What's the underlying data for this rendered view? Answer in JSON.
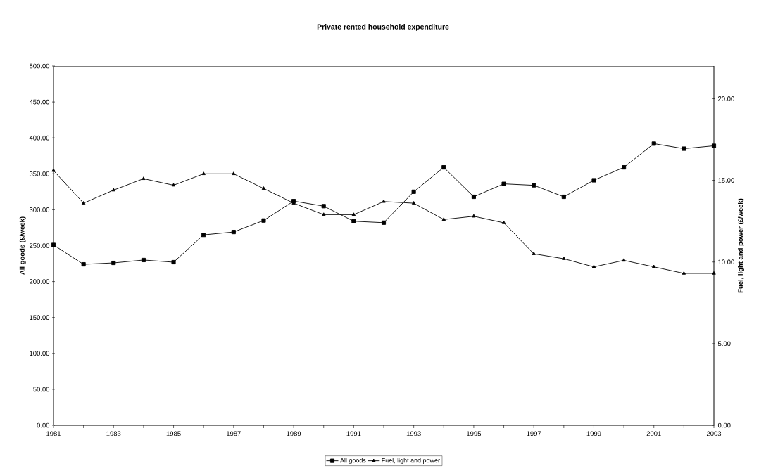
{
  "chart_data": {
    "type": "line",
    "title": "Private rented household expenditure",
    "ylabel": "All goods (£/week)",
    "y2label": "Fuel, light and power (£/week)",
    "x": [
      1981,
      1982,
      1983,
      1984,
      1985,
      1986,
      1987,
      1988,
      1989,
      1990,
      1991,
      1992,
      1993,
      1994,
      1995,
      1996,
      1997,
      1998,
      1999,
      2000,
      2001,
      2002,
      2003
    ],
    "series": [
      {
        "name": "All goods",
        "color": "#000000",
        "marker": "square",
        "values": [
          251,
          224,
          226,
          230,
          227,
          265,
          269,
          285,
          312,
          305,
          284,
          282,
          325,
          359,
          318,
          336,
          334,
          318,
          341,
          359,
          392,
          385,
          389
        ]
      },
      {
        "name": "Fuel, light and power",
        "color": "#000000",
        "marker": "triangle",
        "axis": "y2",
        "values": [
          15.6,
          13.6,
          14.4,
          15.1,
          14.7,
          15.4,
          15.4,
          14.5,
          13.6,
          12.9,
          12.9,
          13.7,
          13.6,
          12.6,
          12.8,
          12.4,
          10.5,
          10.2,
          9.7,
          10.1,
          9.7,
          9.3,
          9.3
        ]
      }
    ],
    "xlim": [
      1981,
      2003
    ],
    "xticks": [
      1981,
      {
        "value": 1982,
        "label": null
      },
      1983,
      {
        "value": 1984,
        "label": null
      },
      1985,
      {
        "value": 1986,
        "label": null
      },
      1987,
      {
        "value": 1988,
        "label": null
      },
      1989,
      {
        "value": 1990,
        "label": null
      },
      1991,
      {
        "value": 1992,
        "label": null
      },
      1993,
      {
        "value": 1994,
        "label": null
      },
      1995,
      {
        "value": 1996,
        "label": null
      },
      1997,
      {
        "value": 1998,
        "label": null
      },
      1999,
      {
        "value": 2000,
        "label": null
      },
      2001,
      {
        "value": 2002,
        "label": null
      },
      2003
    ],
    "ylim": [
      0,
      500
    ],
    "yticks": [
      {
        "value": 0,
        "label": "0.00"
      },
      {
        "value": 50,
        "label": "50.00"
      },
      {
        "value": 100,
        "label": "100.00"
      },
      {
        "value": 150,
        "label": "150.00"
      },
      {
        "value": 200,
        "label": "200.00"
      },
      {
        "value": 250,
        "label": "250.00"
      },
      {
        "value": 300,
        "label": "300.00"
      },
      {
        "value": 350,
        "label": "350.00"
      },
      {
        "value": 400,
        "label": "400.00"
      },
      {
        "value": 450,
        "label": "450.00"
      },
      {
        "value": 500,
        "label": "500.00"
      }
    ],
    "y2lim": [
      0,
      22
    ],
    "y2ticks": [
      {
        "value": 0,
        "label": "0.00"
      },
      {
        "value": 5,
        "label": "5.00"
      },
      {
        "value": 10,
        "label": "10.00"
      },
      {
        "value": 15,
        "label": "15.00"
      },
      {
        "value": 20,
        "label": "20.00"
      }
    ],
    "grid": false,
    "legend": "bottom",
    "line_style": "solid"
  }
}
